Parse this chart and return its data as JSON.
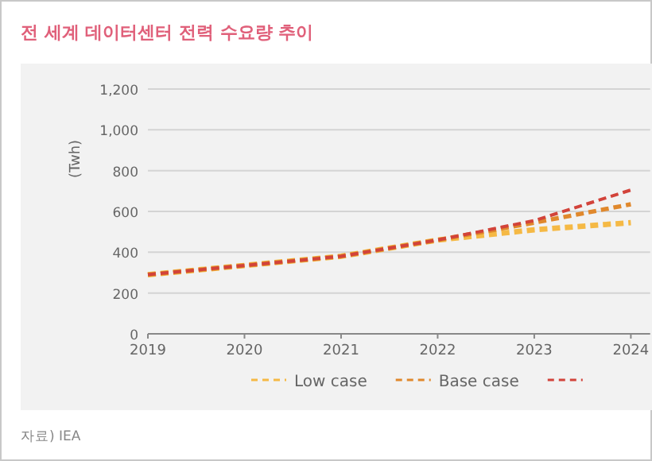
{
  "chart_data": {
    "type": "line",
    "title": "전 세계 데이터센터 전력 수요량 추이",
    "ylabel": "(Twh)",
    "annotations": [
      "자료) IEA"
    ],
    "x": [
      2019,
      2020,
      2021,
      2022,
      2023,
      2024
    ],
    "series": [
      {
        "name": "Low case",
        "color": "#f5b945",
        "values": [
          290,
          335,
          380,
          460,
          510,
          545
        ]
      },
      {
        "name": "Base case",
        "color": "#e0882c",
        "values": [
          290,
          335,
          380,
          460,
          545,
          635
        ]
      },
      {
        "color": "#d2433a",
        "values": [
          290,
          335,
          380,
          460,
          555,
          705
        ]
      }
    ],
    "xlim": [
      2019,
      2024.2
    ],
    "ylim": [
      0,
      1200
    ],
    "xticks": [
      2019,
      2020,
      2021,
      2022,
      2023,
      2024
    ],
    "yticks": [
      0,
      200,
      400,
      600,
      800,
      {
        "value": 1000,
        "label": "1,000"
      },
      {
        "value": 1200,
        "label": "1,200"
      }
    ],
    "grid": "y",
    "legend": "bottom",
    "line_style": "dashed"
  }
}
